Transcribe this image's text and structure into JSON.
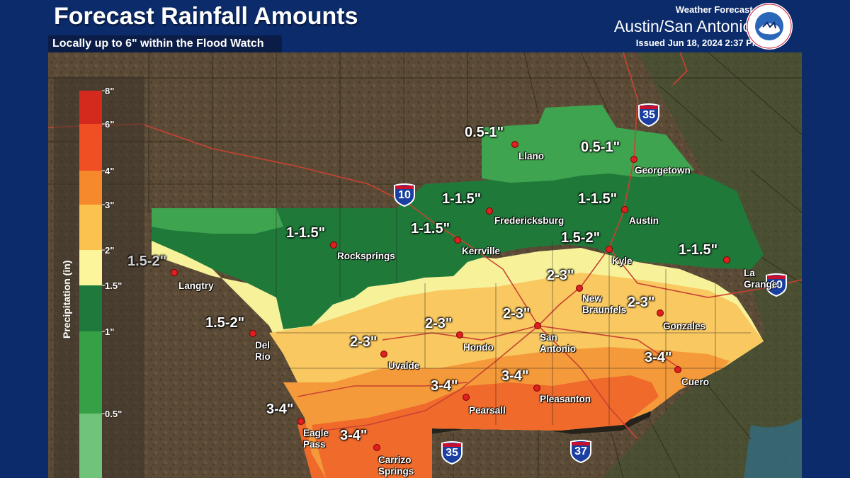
{
  "header": {
    "title": "Forecast Rainfall Amounts",
    "subtitle": "Locally up to 6\" within the Flood Watch",
    "office_label": "Weather Forecast Office",
    "office_city": "Austin/San Antonio, TX",
    "issued": "Issued Jun 18, 2024 2:37 PM CDT",
    "logo_text": "NATIONAL WEATHER SERVICE"
  },
  "legend": {
    "title": "Precipitation (in)",
    "ticks": [
      "8\"",
      "6\"",
      "4\"",
      "3\"",
      "2\"",
      "1.5\"",
      "1\"",
      "0.5\""
    ],
    "colors": [
      "#d42a1e",
      "#f04e23",
      "#f5892c",
      "#fcc24e",
      "#fcf59b",
      "#1e7a3c",
      "#36a046",
      "#70c47a"
    ]
  },
  "colors": {
    "band_05_1": "#3fa44f",
    "band_1_15": "#1f7a3a",
    "band_15_2": "#f7f29a",
    "band_2_3": "#f9c860",
    "band_3_4": "#f59a3a",
    "band_4_6": "#ef6a2b",
    "terrain": "#5a4a35",
    "header_bg": "#0c2b6b"
  },
  "amounts": [
    {
      "text": "0.5-1\""
    },
    {
      "text": "0.5-1\""
    },
    {
      "text": "1-1.5\""
    },
    {
      "text": "1-1.5\""
    },
    {
      "text": "1-1.5\""
    },
    {
      "text": "1-1.5\""
    },
    {
      "text": "1-1.5\""
    },
    {
      "text": "1.5-2\""
    },
    {
      "text": "1.5-2\""
    },
    {
      "text": "1.5-2\""
    },
    {
      "text": "2-3\""
    },
    {
      "text": "2-3\""
    },
    {
      "text": "2-3\""
    },
    {
      "text": "2-3\""
    },
    {
      "text": "2-3\""
    },
    {
      "text": "3-4\""
    },
    {
      "text": "3-4\""
    },
    {
      "text": "3-4\""
    },
    {
      "text": "3-4\""
    },
    {
      "text": "3-4\""
    }
  ],
  "cities": [
    "Llano",
    "Georgetown",
    "Fredericksburg",
    "Austin",
    "Rocksprings",
    "Kerrville",
    "Kyle",
    "Langtry",
    "La Grange",
    "New Braunfels",
    "Del Rio",
    "Gonzales",
    "Uvalde",
    "Hondo",
    "San Antonio",
    "Cuero",
    "Pearsall",
    "Pleasanton",
    "Eagle Pass",
    "Carrizo Springs"
  ],
  "shields": [
    "35",
    "10",
    "10",
    "35",
    "37"
  ]
}
